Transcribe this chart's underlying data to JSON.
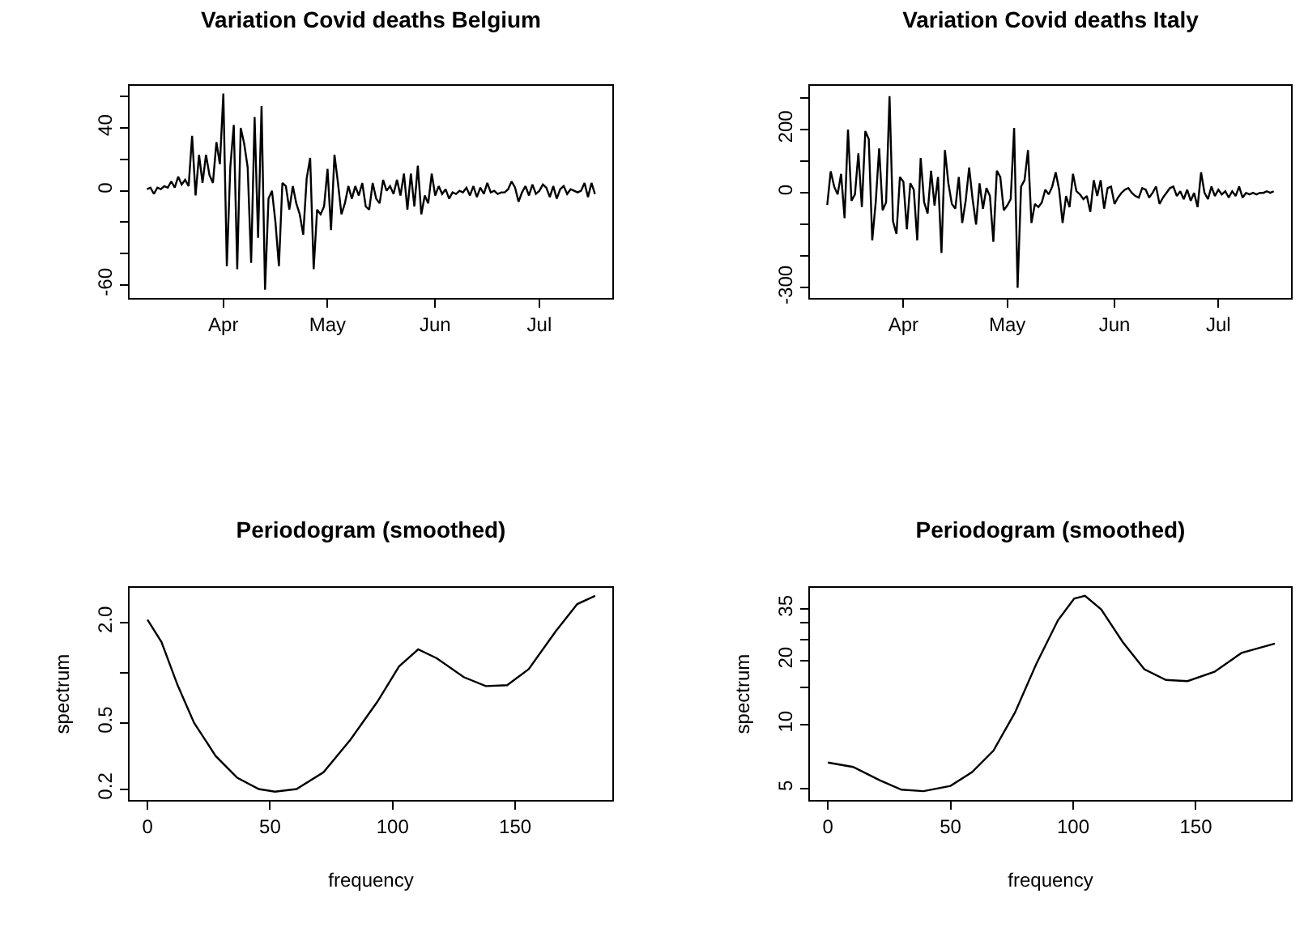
{
  "chart_data": [
    {
      "type": "line",
      "title": "Variation Covid deaths Belgium",
      "color": "#000000",
      "line_style": "solid",
      "grid": false,
      "x": [
        "--03-10",
        "--03-11",
        "--03-12",
        "--03-13",
        "--03-14",
        "--03-15",
        "--03-16",
        "--03-17",
        "--03-18",
        "--03-19",
        "--03-20",
        "--03-21",
        "--03-22",
        "--03-23",
        "--03-24",
        "--03-25",
        "--03-26",
        "--03-27",
        "--03-28",
        "--03-29",
        "--03-30",
        "--03-31",
        "--04-01",
        "--04-02",
        "--04-03",
        "--04-04",
        "--04-05",
        "--04-06",
        "--04-07",
        "--04-08",
        "--04-09",
        "--04-10",
        "--04-11",
        "--04-12",
        "--04-13",
        "--04-14",
        "--04-15",
        "--04-16",
        "--04-17",
        "--04-18",
        "--04-19",
        "--04-20",
        "--04-21",
        "--04-22",
        "--04-23",
        "--04-24",
        "--04-25",
        "--04-26",
        "--04-27",
        "--04-28",
        "--04-29",
        "--04-30",
        "--05-01",
        "--05-02",
        "--05-03",
        "--05-04",
        "--05-05",
        "--05-06",
        "--05-07",
        "--05-08",
        "--05-09",
        "--05-10",
        "--05-11",
        "--05-12",
        "--05-13",
        "--05-14",
        "--05-15",
        "--05-16",
        "--05-17",
        "--05-18",
        "--05-19",
        "--05-20",
        "--05-21",
        "--05-22",
        "--05-23",
        "--05-24",
        "--05-25",
        "--05-26",
        "--05-27",
        "--05-28",
        "--05-29",
        "--05-30",
        "--05-31",
        "--06-01",
        "--06-02",
        "--06-03",
        "--06-04",
        "--06-05",
        "--06-06",
        "--06-07",
        "--06-08",
        "--06-09",
        "--06-10",
        "--06-11",
        "--06-12",
        "--06-13",
        "--06-14",
        "--06-15",
        "--06-16",
        "--06-17",
        "--06-18",
        "--06-19",
        "--06-20",
        "--06-21",
        "--06-22",
        "--06-23",
        "--06-24",
        "--06-25",
        "--06-26",
        "--06-27",
        "--06-28",
        "--06-29",
        "--06-30",
        "--07-01",
        "--07-02",
        "--07-03",
        "--07-04",
        "--07-05",
        "--07-06",
        "--07-07",
        "--07-08",
        "--07-09",
        "--07-10",
        "--07-11",
        "--07-12",
        "--07-13",
        "--07-14",
        "--07-15",
        "--07-16",
        "--07-17"
      ],
      "values": [
        1,
        2,
        -2,
        2,
        1,
        3,
        2,
        6,
        2,
        9,
        4,
        7,
        3,
        35,
        -3,
        23,
        5,
        23,
        10,
        5,
        31,
        17,
        62,
        -48,
        15,
        42,
        -50,
        40,
        30,
        15,
        -46,
        47,
        -30,
        54,
        -63,
        -5,
        0,
        -20,
        -48,
        5,
        3,
        -12,
        3,
        -8,
        -15,
        -28,
        8,
        21,
        -50,
        -12,
        -15,
        -10,
        14,
        -25,
        23,
        5,
        -15,
        -8,
        3,
        -5,
        3,
        -3,
        5,
        -10,
        -12,
        5,
        -5,
        -8,
        7,
        0,
        3,
        -2,
        7,
        -3,
        11,
        -12,
        11,
        -10,
        16,
        -15,
        -3,
        -8,
        11,
        -3,
        3,
        -2,
        1,
        -5,
        -1,
        -2,
        0,
        -1,
        2,
        -3,
        3,
        -4,
        2,
        -2,
        5,
        -1,
        0,
        -2,
        -1,
        -1,
        1,
        6,
        2,
        -7,
        -1,
        3,
        -3,
        4,
        -2,
        0,
        4,
        2,
        -4,
        3,
        -5,
        1,
        3,
        -2,
        1,
        0,
        -1,
        0,
        5,
        -4,
        5,
        -2
      ],
      "xlim": [
        "--03-05",
        "--07-22"
      ],
      "xticks": [
        {
          "value": "--04-01",
          "label": "Apr"
        },
        {
          "value": "--05-01",
          "label": "May"
        },
        {
          "value": "--06-01",
          "label": "Jun"
        },
        {
          "value": "--07-01",
          "label": "Jul"
        }
      ],
      "ylim": [
        -68.3,
        66.9
      ],
      "yticks": [
        -60,
        {
          "value": -40,
          "label": null
        },
        {
          "value": -20,
          "label": null
        },
        0,
        {
          "value": 20,
          "label": null
        },
        40,
        {
          "value": 60,
          "label": null
        }
      ]
    },
    {
      "type": "line",
      "title": "Variation Covid deaths Italy",
      "color": "#000000",
      "line_style": "solid",
      "grid": false,
      "x": [
        "--03-10",
        "--03-11",
        "--03-12",
        "--03-13",
        "--03-14",
        "--03-15",
        "--03-16",
        "--03-17",
        "--03-18",
        "--03-19",
        "--03-20",
        "--03-21",
        "--03-22",
        "--03-23",
        "--03-24",
        "--03-25",
        "--03-26",
        "--03-27",
        "--03-28",
        "--03-29",
        "--03-30",
        "--03-31",
        "--04-01",
        "--04-02",
        "--04-03",
        "--04-04",
        "--04-05",
        "--04-06",
        "--04-07",
        "--04-08",
        "--04-09",
        "--04-10",
        "--04-11",
        "--04-12",
        "--04-13",
        "--04-14",
        "--04-15",
        "--04-16",
        "--04-17",
        "--04-18",
        "--04-19",
        "--04-20",
        "--04-21",
        "--04-22",
        "--04-23",
        "--04-24",
        "--04-25",
        "--04-26",
        "--04-27",
        "--04-28",
        "--04-29",
        "--04-30",
        "--05-01",
        "--05-02",
        "--05-03",
        "--05-04",
        "--05-05",
        "--05-06",
        "--05-07",
        "--05-08",
        "--05-09",
        "--05-10",
        "--05-11",
        "--05-12",
        "--05-13",
        "--05-14",
        "--05-15",
        "--05-16",
        "--05-17",
        "--05-18",
        "--05-19",
        "--05-20",
        "--05-21",
        "--05-22",
        "--05-23",
        "--05-24",
        "--05-25",
        "--05-26",
        "--05-27",
        "--05-28",
        "--05-29",
        "--05-30",
        "--05-31",
        "--06-01",
        "--06-02",
        "--06-03",
        "--06-04",
        "--06-05",
        "--06-06",
        "--06-07",
        "--06-08",
        "--06-09",
        "--06-10",
        "--06-11",
        "--06-12",
        "--06-13",
        "--06-14",
        "--06-15",
        "--06-16",
        "--06-17",
        "--06-18",
        "--06-19",
        "--06-20",
        "--06-21",
        "--06-22",
        "--06-23",
        "--06-24",
        "--06-25",
        "--06-26",
        "--06-27",
        "--06-28",
        "--06-29",
        "--06-30",
        "--07-01",
        "--07-02",
        "--07-03",
        "--07-04",
        "--07-05",
        "--07-06",
        "--07-07",
        "--07-08",
        "--07-09",
        "--07-10",
        "--07-11",
        "--07-12",
        "--07-13",
        "--07-14",
        "--07-15",
        "--07-16",
        "--07-17"
      ],
      "values": [
        -38,
        68,
        20,
        -5,
        60,
        -80,
        200,
        -25,
        -5,
        125,
        -45,
        195,
        170,
        -150,
        -30,
        140,
        -55,
        -30,
        305,
        -90,
        -130,
        50,
        35,
        -115,
        30,
        10,
        -150,
        110,
        -30,
        -65,
        70,
        -40,
        50,
        -190,
        135,
        30,
        -35,
        -50,
        50,
        -95,
        -25,
        80,
        -20,
        -100,
        30,
        -50,
        15,
        -10,
        -155,
        70,
        50,
        -55,
        -40,
        -20,
        205,
        -300,
        20,
        40,
        135,
        -95,
        -35,
        -45,
        -30,
        10,
        -5,
        20,
        65,
        10,
        -95,
        -10,
        -45,
        60,
        5,
        -5,
        -20,
        -10,
        -60,
        40,
        -10,
        40,
        -50,
        15,
        20,
        -35,
        -15,
        0,
        10,
        15,
        0,
        -10,
        -15,
        15,
        10,
        -15,
        0,
        20,
        -35,
        -15,
        0,
        15,
        20,
        -10,
        5,
        -20,
        10,
        -25,
        0,
        -45,
        65,
        0,
        -20,
        20,
        -10,
        10,
        -5,
        5,
        -15,
        5,
        -10,
        20,
        -15,
        0,
        -5,
        0,
        -5,
        0,
        0,
        5,
        0,
        5
      ],
      "xlim": [
        "--03-05",
        "--07-22"
      ],
      "xticks": [
        {
          "value": "--04-01",
          "label": "Apr"
        },
        {
          "value": "--05-01",
          "label": "May"
        },
        {
          "value": "--06-01",
          "label": "Jun"
        },
        {
          "value": "--07-01",
          "label": "Jul"
        }
      ],
      "ylim": [
        -332,
        338
      ],
      "yticks": [
        -300,
        {
          "value": -200,
          "label": null
        },
        {
          "value": -100,
          "label": null
        },
        0,
        {
          "value": 100,
          "label": null
        },
        200,
        {
          "value": 300,
          "label": null
        }
      ]
    },
    {
      "type": "line",
      "title": "Periodogram (smoothed)",
      "xlabel": "frequency",
      "ylabel": "spectrum",
      "color": "#000000",
      "line_style": "solid",
      "grid": false,
      "log": "y",
      "x": [
        0,
        5.7,
        12.3,
        19,
        27.8,
        36.6,
        45.4,
        52,
        60.8,
        71.8,
        82.8,
        93.8,
        102.6,
        110.4,
        118,
        129,
        138,
        146.7,
        155.5,
        166.5,
        175.3,
        182.6
      ],
      "values": [
        2.08,
        1.53,
        0.84,
        0.5,
        0.316,
        0.234,
        0.2,
        0.193,
        0.2,
        0.252,
        0.396,
        0.67,
        1.09,
        1.38,
        1.22,
        0.94,
        0.83,
        0.84,
        1.05,
        1.77,
        2.58,
        2.89
      ],
      "xlim": [
        -7.3,
        189.6
      ],
      "xticks": [
        0,
        50,
        100,
        150
      ],
      "ylim": [
        0.172,
        3.23
      ],
      "yticks": [
        {
          "value": 0.2,
          "label": "0.2"
        },
        {
          "value": 0.5,
          "label": "0.5"
        },
        {
          "value": 1,
          "label": null
        },
        {
          "value": 2,
          "label": "2.0"
        }
      ]
    },
    {
      "type": "line",
      "title": "Periodogram (smoothed)",
      "xlabel": "frequency",
      "ylabel": "spectrum",
      "color": "#000000",
      "line_style": "solid",
      "grid": false,
      "log": "y",
      "x": [
        0,
        10.3,
        21.3,
        30,
        39,
        50,
        58.7,
        67.5,
        76.3,
        85,
        93.8,
        100.4,
        104.8,
        111.4,
        120.2,
        129,
        137.8,
        146.6,
        157.6,
        168.6,
        182.2
      ],
      "values": [
        6.63,
        6.32,
        5.46,
        4.94,
        4.86,
        5.15,
        5.96,
        7.54,
        11.4,
        19.3,
        30.9,
        39.1,
        40.3,
        34.8,
        24.4,
        18.2,
        16.2,
        16,
        17.7,
        21.7,
        24
      ],
      "xlim": [
        -7.3,
        188.8
      ],
      "xticks": [
        0,
        50,
        100,
        150
      ],
      "ylim": [
        4.42,
        43.9
      ],
      "yticks": [
        5,
        10,
        {
          "value": 15,
          "label": null
        },
        20,
        {
          "value": 25,
          "label": null
        },
        {
          "value": 30,
          "label": null
        },
        35
      ]
    }
  ]
}
